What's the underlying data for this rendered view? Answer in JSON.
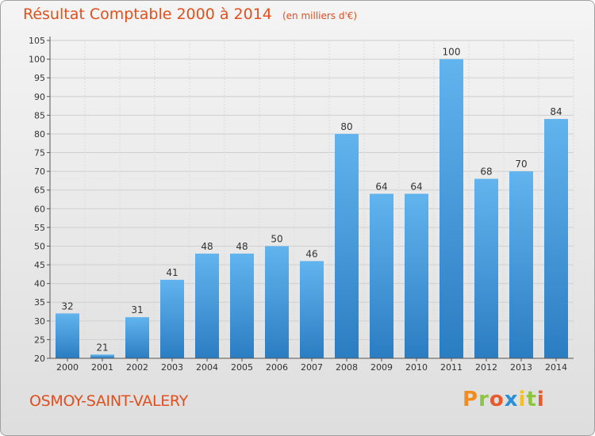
{
  "title": "Résultat Comptable 2000 à 2014",
  "subtitle": "(en milliers d'€)",
  "commune": "OSMOY-SAINT-VALERY",
  "logo": {
    "text": "Proxiti",
    "colors": [
      "#f28c1e",
      "#8cc63f",
      "#e85a2b",
      "#2a8fd6",
      "#f2c21e",
      "#8cc63f",
      "#e85a2b"
    ]
  },
  "colors": {
    "bar_light": "#62b4ee",
    "bar_dark": "#2b7dc2",
    "accent": "#e0501f"
  },
  "chart_data": {
    "type": "bar",
    "categories": [
      "2000",
      "2001",
      "2002",
      "2003",
      "2004",
      "2005",
      "2006",
      "2007",
      "2008",
      "2009",
      "2010",
      "2011",
      "2012",
      "2013",
      "2014"
    ],
    "values": [
      32,
      21,
      31,
      41,
      48,
      48,
      50,
      46,
      80,
      64,
      64,
      100,
      68,
      70,
      84
    ],
    "ylim": [
      20,
      105
    ],
    "yticks": [
      20,
      25,
      30,
      35,
      40,
      45,
      50,
      55,
      60,
      65,
      70,
      75,
      80,
      85,
      90,
      95,
      100,
      105
    ],
    "grid": true,
    "legend": "none"
  }
}
